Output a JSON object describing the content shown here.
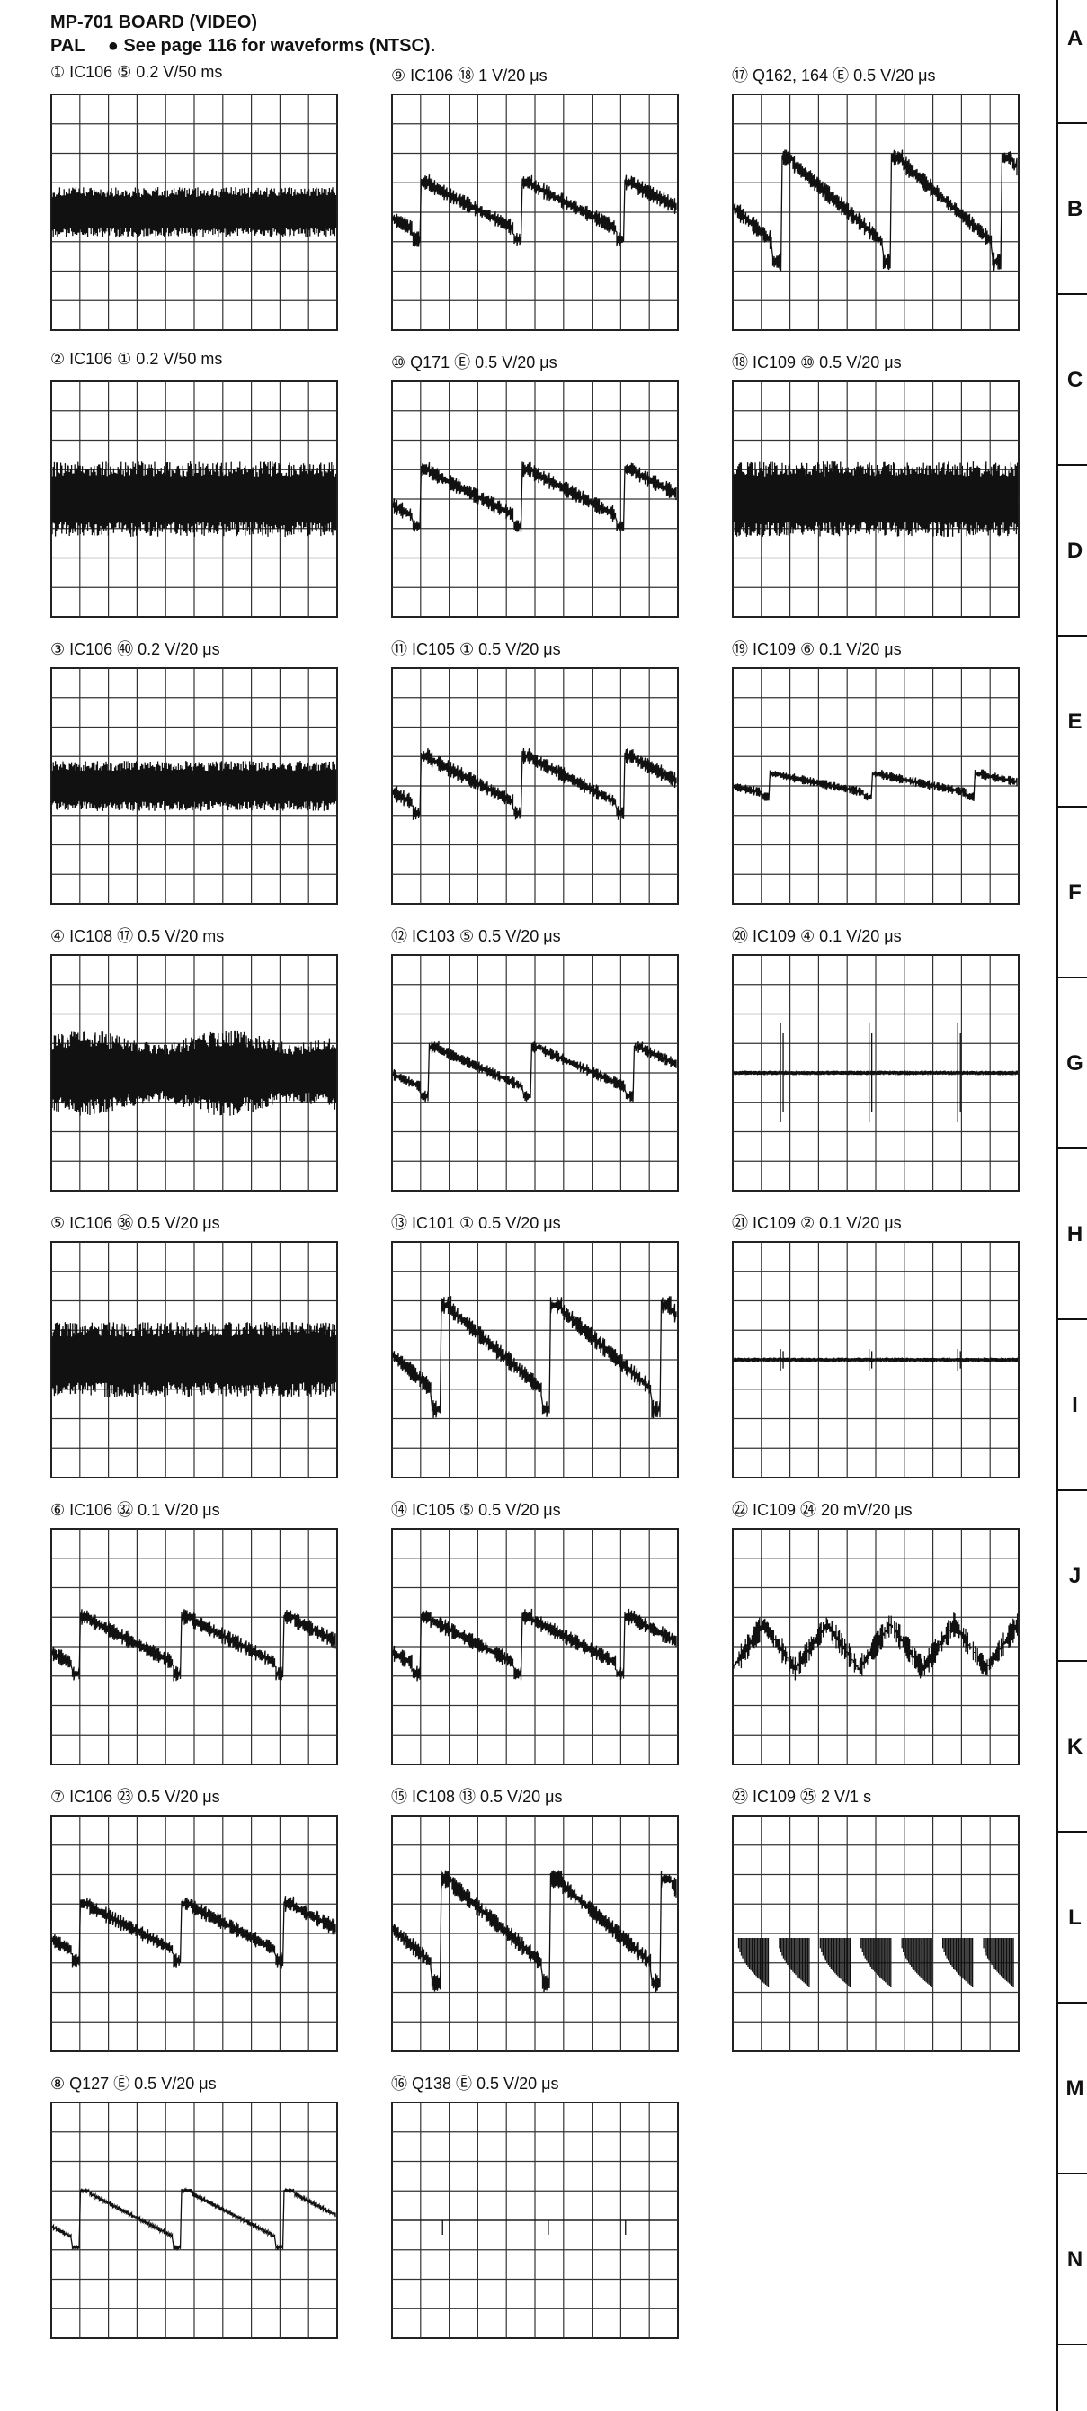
{
  "header": {
    "title": "MP-701 BOARD (VIDEO)",
    "system": "PAL",
    "note": "● See page 116 for waveforms (NTSC)."
  },
  "waveforms": [
    {
      "label": "① IC106 ⑤  0.2 V/50 ms"
    },
    {
      "label": "② IC106 ①  0.2 V/50 ms"
    },
    {
      "label": "③ IC106 ㊵  0.2 V/20 μs"
    },
    {
      "label": "④ IC108 ⑰  0.5 V/20 ms"
    },
    {
      "label": "⑤ IC106 ㊱  0.5 V/20 μs"
    },
    {
      "label": "⑥ IC106 ㉜  0.1 V/20 μs"
    },
    {
      "label": "⑦ IC106 ㉓  0.5 V/20 μs"
    },
    {
      "label": "⑧ Q127 Ⓔ  0.5 V/20 μs"
    },
    {
      "label": "⑨ IC106 ⑱  1 V/20 μs"
    },
    {
      "label": "⑩ Q171 Ⓔ  0.5 V/20 μs"
    },
    {
      "label": "⑪ IC105 ①  0.5 V/20 μs"
    },
    {
      "label": "⑫ IC103 ⑤  0.5 V/20 μs"
    },
    {
      "label": "⑬ IC101 ①  0.5 V/20 μs"
    },
    {
      "label": "⑭ IC105 ⑤  0.5 V/20 μs"
    },
    {
      "label": "⑮ IC108 ⑬  0.5 V/20 μs"
    },
    {
      "label": "⑯ Q138 Ⓔ  0.5 V/20 μs"
    },
    {
      "label": "⑰ Q162, 164 Ⓔ  0.5 V/20 μs"
    },
    {
      "label": "⑱ IC109 ⑩  0.5 V/20 μs"
    },
    {
      "label": "⑲ IC109 ⑥  0.1 V/20 μs"
    },
    {
      "label": "⑳ IC109 ④  0.1 V/20 μs"
    },
    {
      "label": "㉑ IC109 ②  0.1 V/20 μs"
    },
    {
      "label": "㉒ IC109 ㉔  20 mV/20 μs"
    },
    {
      "label": "㉓ IC109 ㉕  2 V/1 s"
    }
  ],
  "grid_refs": [
    "A",
    "B",
    "C",
    "D",
    "E",
    "F",
    "G",
    "H",
    "I",
    "J",
    "K",
    "L",
    "M",
    "N"
  ]
}
